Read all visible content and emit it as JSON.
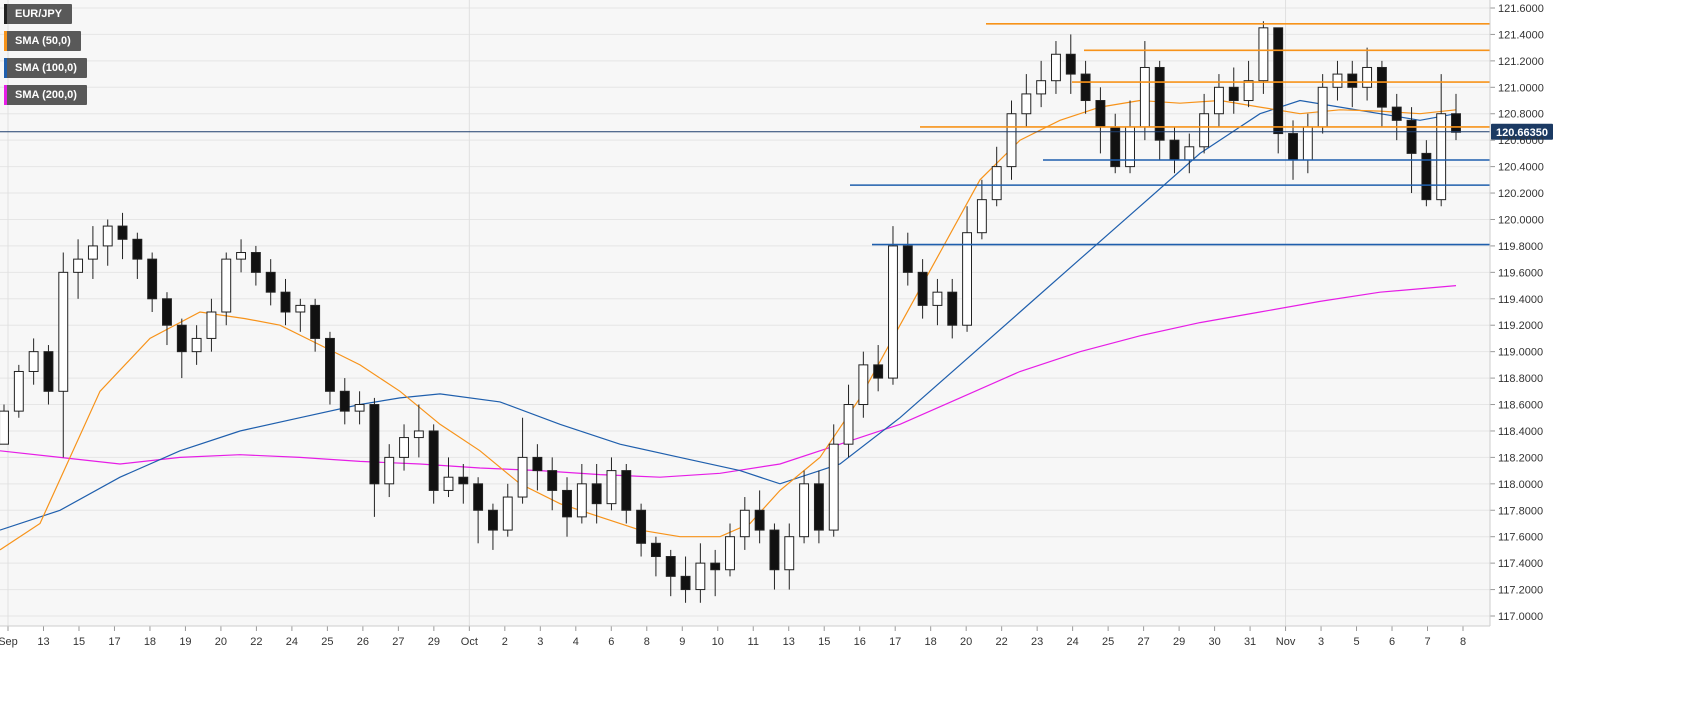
{
  "legend": [
    {
      "label": "EUR/JPY",
      "color": "#222222"
    },
    {
      "label": "SMA (50,0)",
      "color": "#f7931a"
    },
    {
      "label": "SMA (100,0)",
      "color": "#1f5fad"
    },
    {
      "label": "SMA (200,0)",
      "color": "#e61ee6"
    }
  ],
  "current_price": "120.66350",
  "chart_data": {
    "type": "candlestick",
    "symbol": "EUR/JPY",
    "ylim": [
      116.9,
      121.7
    ],
    "y_ticks": [
      "121.6000",
      "121.4000",
      "121.2000",
      "121.0000",
      "120.8000",
      "120.6000",
      "120.4000",
      "120.2000",
      "120.0000",
      "119.8000",
      "119.6000",
      "119.4000",
      "119.2000",
      "119.0000",
      "118.8000",
      "118.6000",
      "118.4000",
      "118.2000",
      "118.0000",
      "117.8000",
      "117.6000",
      "117.4000",
      "117.2000",
      "117.0000"
    ],
    "x_ticks": [
      "Sep",
      "13",
      "15",
      "17",
      "18",
      "19",
      "20",
      "22",
      "24",
      "25",
      "26",
      "27",
      "29",
      "Oct",
      "2",
      "3",
      "4",
      "6",
      "8",
      "9",
      "10",
      "11",
      "13",
      "15",
      "16",
      "17",
      "18",
      "20",
      "22",
      "23",
      "24",
      "25",
      "27",
      "29",
      "30",
      "31",
      "Nov",
      "3",
      "5",
      "6",
      "7",
      "8"
    ],
    "grid": true,
    "legend_position": "top-left",
    "current_price_value": 120.6635,
    "horizontal_levels": [
      {
        "value": 121.48,
        "color": "#f7931a"
      },
      {
        "value": 121.28,
        "color": "#f7931a"
      },
      {
        "value": 121.04,
        "color": "#f7931a"
      },
      {
        "value": 120.7,
        "color": "#f7931a"
      },
      {
        "value": 120.45,
        "color": "#1f5fad"
      },
      {
        "value": 120.26,
        "color": "#1f5fad"
      },
      {
        "value": 119.81,
        "color": "#1f5fad"
      }
    ],
    "candles": [
      [
        118.3,
        118.55,
        118.3,
        118.6
      ],
      [
        118.55,
        118.85,
        118.5,
        118.9
      ],
      [
        118.85,
        119.0,
        118.75,
        119.1
      ],
      [
        119.0,
        118.7,
        118.6,
        119.05
      ],
      [
        118.7,
        119.6,
        118.2,
        119.75
      ],
      [
        119.6,
        119.7,
        119.4,
        119.85
      ],
      [
        119.7,
        119.8,
        119.55,
        119.95
      ],
      [
        119.8,
        119.95,
        119.65,
        120.0
      ],
      [
        119.95,
        119.85,
        119.7,
        120.05
      ],
      [
        119.85,
        119.7,
        119.55,
        119.9
      ],
      [
        119.7,
        119.4,
        119.3,
        119.75
      ],
      [
        119.4,
        119.2,
        119.05,
        119.45
      ],
      [
        119.2,
        119.0,
        118.8,
        119.25
      ],
      [
        119.0,
        119.1,
        118.9,
        119.2
      ],
      [
        119.1,
        119.3,
        119.0,
        119.4
      ],
      [
        119.3,
        119.7,
        119.2,
        119.75
      ],
      [
        119.7,
        119.75,
        119.6,
        119.85
      ],
      [
        119.75,
        119.6,
        119.5,
        119.8
      ],
      [
        119.6,
        119.45,
        119.35,
        119.7
      ],
      [
        119.45,
        119.3,
        119.2,
        119.55
      ],
      [
        119.3,
        119.35,
        119.15,
        119.4
      ],
      [
        119.35,
        119.1,
        119.0,
        119.4
      ],
      [
        119.1,
        118.7,
        118.6,
        119.15
      ],
      [
        118.7,
        118.55,
        118.45,
        118.8
      ],
      [
        118.55,
        118.6,
        118.45,
        118.7
      ],
      [
        118.6,
        118.0,
        117.75,
        118.65
      ],
      [
        118.0,
        118.2,
        117.9,
        118.3
      ],
      [
        118.2,
        118.35,
        118.1,
        118.45
      ],
      [
        118.35,
        118.4,
        118.2,
        118.6
      ],
      [
        118.4,
        117.95,
        117.85,
        118.45
      ],
      [
        117.95,
        118.05,
        117.9,
        118.2
      ],
      [
        118.05,
        118.0,
        117.85,
        118.15
      ],
      [
        118.0,
        117.8,
        117.55,
        118.05
      ],
      [
        117.8,
        117.65,
        117.5,
        117.85
      ],
      [
        117.65,
        117.9,
        117.6,
        118.0
      ],
      [
        117.9,
        118.2,
        117.85,
        118.5
      ],
      [
        118.2,
        118.1,
        117.95,
        118.3
      ],
      [
        118.1,
        117.95,
        117.8,
        118.2
      ],
      [
        117.95,
        117.75,
        117.6,
        118.05
      ],
      [
        117.75,
        118.0,
        117.7,
        118.15
      ],
      [
        118.0,
        117.85,
        117.7,
        118.15
      ],
      [
        117.85,
        118.1,
        117.8,
        118.2
      ],
      [
        118.1,
        117.8,
        117.7,
        118.15
      ],
      [
        117.8,
        117.55,
        117.45,
        117.85
      ],
      [
        117.55,
        117.45,
        117.3,
        117.6
      ],
      [
        117.45,
        117.3,
        117.15,
        117.5
      ],
      [
        117.3,
        117.2,
        117.1,
        117.45
      ],
      [
        117.2,
        117.4,
        117.1,
        117.55
      ],
      [
        117.4,
        117.35,
        117.15,
        117.5
      ],
      [
        117.35,
        117.6,
        117.3,
        117.7
      ],
      [
        117.6,
        117.8,
        117.5,
        117.9
      ],
      [
        117.8,
        117.65,
        117.55,
        117.95
      ],
      [
        117.65,
        117.35,
        117.2,
        117.7
      ],
      [
        117.35,
        117.6,
        117.2,
        117.7
      ],
      [
        117.6,
        118.0,
        117.55,
        118.1
      ],
      [
        118.0,
        117.65,
        117.55,
        118.1
      ],
      [
        117.65,
        118.3,
        117.6,
        118.45
      ],
      [
        118.3,
        118.6,
        118.2,
        118.75
      ],
      [
        118.6,
        118.9,
        118.5,
        119.0
      ],
      [
        118.9,
        118.8,
        118.7,
        119.05
      ],
      [
        118.8,
        119.8,
        118.75,
        119.95
      ],
      [
        119.8,
        119.6,
        119.5,
        119.9
      ],
      [
        119.6,
        119.35,
        119.25,
        119.7
      ],
      [
        119.35,
        119.45,
        119.2,
        119.55
      ],
      [
        119.45,
        119.2,
        119.1,
        119.55
      ],
      [
        119.2,
        119.9,
        119.15,
        120.1
      ],
      [
        119.9,
        120.15,
        119.85,
        120.3
      ],
      [
        120.15,
        120.4,
        120.1,
        120.55
      ],
      [
        120.4,
        120.8,
        120.3,
        120.9
      ],
      [
        120.8,
        120.95,
        120.7,
        121.1
      ],
      [
        120.95,
        121.05,
        120.85,
        121.2
      ],
      [
        121.05,
        121.25,
        120.95,
        121.35
      ],
      [
        121.25,
        121.1,
        120.95,
        121.4
      ],
      [
        121.1,
        120.9,
        120.8,
        121.2
      ],
      [
        120.9,
        120.7,
        120.5,
        121.0
      ],
      [
        120.7,
        120.4,
        120.35,
        120.8
      ],
      [
        120.4,
        120.7,
        120.35,
        120.9
      ],
      [
        120.7,
        121.15,
        120.6,
        121.35
      ],
      [
        121.15,
        120.6,
        120.45,
        121.2
      ],
      [
        120.6,
        120.45,
        120.35,
        120.7
      ],
      [
        120.45,
        120.55,
        120.35,
        120.65
      ],
      [
        120.55,
        120.8,
        120.5,
        120.95
      ],
      [
        120.8,
        121.0,
        120.7,
        121.1
      ],
      [
        121.0,
        120.9,
        120.8,
        121.15
      ],
      [
        120.9,
        121.05,
        120.85,
        121.2
      ],
      [
        121.05,
        121.45,
        120.95,
        121.5
      ],
      [
        121.45,
        120.65,
        120.5,
        121.45
      ],
      [
        120.65,
        120.45,
        120.3,
        120.75
      ],
      [
        120.45,
        120.7,
        120.35,
        120.8
      ],
      [
        120.7,
        121.0,
        120.65,
        121.1
      ],
      [
        121.0,
        121.1,
        120.9,
        121.2
      ],
      [
        121.1,
        121.0,
        120.85,
        121.2
      ],
      [
        121.0,
        121.15,
        120.9,
        121.3
      ],
      [
        121.15,
        120.85,
        120.7,
        121.2
      ],
      [
        120.85,
        120.75,
        120.6,
        120.95
      ],
      [
        120.75,
        120.5,
        120.2,
        120.85
      ],
      [
        120.5,
        120.15,
        120.1,
        120.6
      ],
      [
        120.15,
        120.8,
        120.1,
        121.1
      ],
      [
        120.8,
        120.66,
        120.6,
        120.95
      ]
    ],
    "sma50": [
      [
        0,
        117.5
      ],
      [
        40,
        117.7
      ],
      [
        100,
        118.7
      ],
      [
        150,
        119.1
      ],
      [
        200,
        119.3
      ],
      [
        245,
        119.25
      ],
      [
        280,
        119.2
      ],
      [
        320,
        119.05
      ],
      [
        360,
        118.9
      ],
      [
        400,
        118.7
      ],
      [
        440,
        118.45
      ],
      [
        480,
        118.25
      ],
      [
        520,
        118.0
      ],
      [
        560,
        117.85
      ],
      [
        600,
        117.75
      ],
      [
        640,
        117.65
      ],
      [
        680,
        117.6
      ],
      [
        720,
        117.6
      ],
      [
        750,
        117.7
      ],
      [
        780,
        117.95
      ],
      [
        820,
        118.2
      ],
      [
        860,
        118.65
      ],
      [
        900,
        119.2
      ],
      [
        940,
        119.75
      ],
      [
        980,
        120.3
      ],
      [
        1020,
        120.6
      ],
      [
        1060,
        120.75
      ],
      [
        1100,
        120.85
      ],
      [
        1140,
        120.9
      ],
      [
        1180,
        120.88
      ],
      [
        1220,
        120.9
      ],
      [
        1260,
        120.85
      ],
      [
        1300,
        120.8
      ],
      [
        1340,
        120.83
      ],
      [
        1380,
        120.82
      ],
      [
        1420,
        120.8
      ],
      [
        1456,
        120.83
      ]
    ],
    "sma100": [
      [
        0,
        117.65
      ],
      [
        60,
        117.8
      ],
      [
        120,
        118.05
      ],
      [
        180,
        118.25
      ],
      [
        240,
        118.4
      ],
      [
        300,
        118.5
      ],
      [
        360,
        118.6
      ],
      [
        400,
        118.65
      ],
      [
        440,
        118.68
      ],
      [
        500,
        118.62
      ],
      [
        560,
        118.45
      ],
      [
        620,
        118.3
      ],
      [
        680,
        118.2
      ],
      [
        740,
        118.1
      ],
      [
        780,
        118.0
      ],
      [
        840,
        118.15
      ],
      [
        900,
        118.5
      ],
      [
        960,
        118.9
      ],
      [
        1020,
        119.3
      ],
      [
        1080,
        119.7
      ],
      [
        1140,
        120.1
      ],
      [
        1200,
        120.5
      ],
      [
        1260,
        120.8
      ],
      [
        1300,
        120.9
      ],
      [
        1340,
        120.85
      ],
      [
        1380,
        120.8
      ],
      [
        1420,
        120.75
      ],
      [
        1456,
        120.8
      ]
    ],
    "sma200": [
      [
        0,
        118.25
      ],
      [
        60,
        118.2
      ],
      [
        120,
        118.15
      ],
      [
        180,
        118.2
      ],
      [
        240,
        118.22
      ],
      [
        300,
        118.2
      ],
      [
        360,
        118.17
      ],
      [
        420,
        118.15
      ],
      [
        480,
        118.12
      ],
      [
        540,
        118.1
      ],
      [
        600,
        118.07
      ],
      [
        660,
        118.05
      ],
      [
        720,
        118.08
      ],
      [
        780,
        118.15
      ],
      [
        840,
        118.3
      ],
      [
        900,
        118.45
      ],
      [
        960,
        118.65
      ],
      [
        1020,
        118.85
      ],
      [
        1080,
        119.0
      ],
      [
        1140,
        119.12
      ],
      [
        1200,
        119.22
      ],
      [
        1260,
        119.3
      ],
      [
        1320,
        119.38
      ],
      [
        1380,
        119.45
      ],
      [
        1456,
        119.5
      ]
    ]
  }
}
